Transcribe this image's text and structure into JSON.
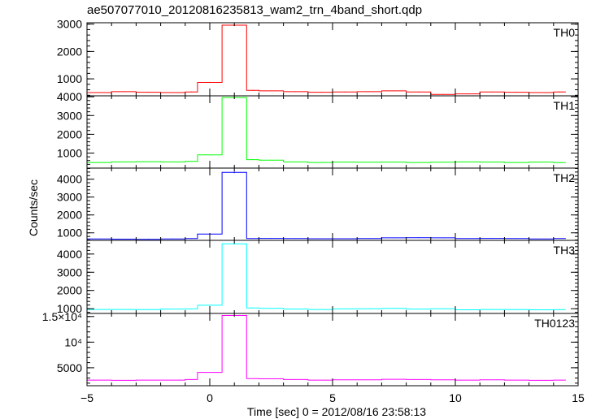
{
  "chart_data": {
    "type": "line",
    "title": "ae507077010_20120816235813_wam2_trn_4band_short.qdp",
    "xlabel": "Time [sec] 0 = 2012/08/16 23:58:13",
    "ylabel": "Counts/sec",
    "xlim": [
      -5,
      15
    ],
    "x_ticks": [
      -5,
      0,
      5,
      10,
      15
    ],
    "x_tick_labels": [
      "−5",
      "0",
      "5",
      "10",
      "15"
    ],
    "bin_edges": [
      -5.0,
      -4.0,
      -3.0,
      -2.0,
      -1.0,
      -0.5,
      0.5,
      1.5,
      2.0,
      3.0,
      4.0,
      5.0,
      6.0,
      7.0,
      8.0,
      9.0,
      10.0,
      11.0,
      12.0,
      13.0,
      14.0,
      14.5
    ],
    "panels": [
      {
        "name": "TH0",
        "color": "#ff0000",
        "ylim": [
          380,
          3050
        ],
        "yticks": [
          1000,
          2000,
          3000
        ],
        "ytick_labels": [
          "1000",
          "2000",
          "3000"
        ],
        "values": [
          500,
          530,
          510,
          500,
          520,
          870,
          2960,
          580,
          560,
          530,
          510,
          520,
          530,
          560,
          520,
          430,
          450,
          520,
          510,
          500,
          520
        ]
      },
      {
        "name": "TH1",
        "color": "#00ff00",
        "ylim": [
          200,
          4050
        ],
        "yticks": [
          1000,
          2000,
          3000,
          4000
        ],
        "ytick_labels": [
          "1000",
          "2000",
          "3000",
          "4000"
        ],
        "values": [
          500,
          530,
          540,
          530,
          560,
          900,
          3960,
          650,
          620,
          530,
          500,
          520,
          510,
          520,
          500,
          510,
          530,
          520,
          500,
          520,
          490
        ]
      },
      {
        "name": "TH2",
        "color": "#0000ff",
        "ylim": [
          580,
          4620
        ],
        "yticks": [
          1000,
          2000,
          3000,
          4000
        ],
        "ytick_labels": [
          "1000",
          "2000",
          "3000",
          "4000"
        ],
        "values": [
          660,
          650,
          640,
          660,
          680,
          930,
          4380,
          680,
          690,
          680,
          670,
          670,
          680,
          720,
          730,
          720,
          680,
          690,
          680,
          660,
          680
        ]
      },
      {
        "name": "TH3",
        "color": "#00ffff",
        "ylim": [
          740,
          4750
        ],
        "yticks": [
          1000,
          2000,
          3000,
          4000
        ],
        "ytick_labels": [
          "1000",
          "2000",
          "3000",
          "4000"
        ],
        "values": [
          960,
          960,
          950,
          980,
          990,
          1190,
          4560,
          1040,
          1020,
          980,
          960,
          990,
          1000,
          1020,
          980,
          1000,
          940,
          960,
          950,
          940,
          950
        ]
      },
      {
        "name": "TH0123",
        "color": "#ff00ff",
        "ylim": [
          1500,
          15600
        ],
        "yticks": [
          5000,
          10000,
          15000
        ],
        "ytick_labels": [
          "5000",
          "10⁴",
          "1.5×10⁴"
        ],
        "values": [
          2600,
          2550,
          2600,
          2600,
          2700,
          4100,
          15200,
          2900,
          2850,
          2700,
          2600,
          2650,
          2650,
          2750,
          2700,
          2650,
          2600,
          2650,
          2600,
          2550,
          2600
        ]
      }
    ]
  }
}
